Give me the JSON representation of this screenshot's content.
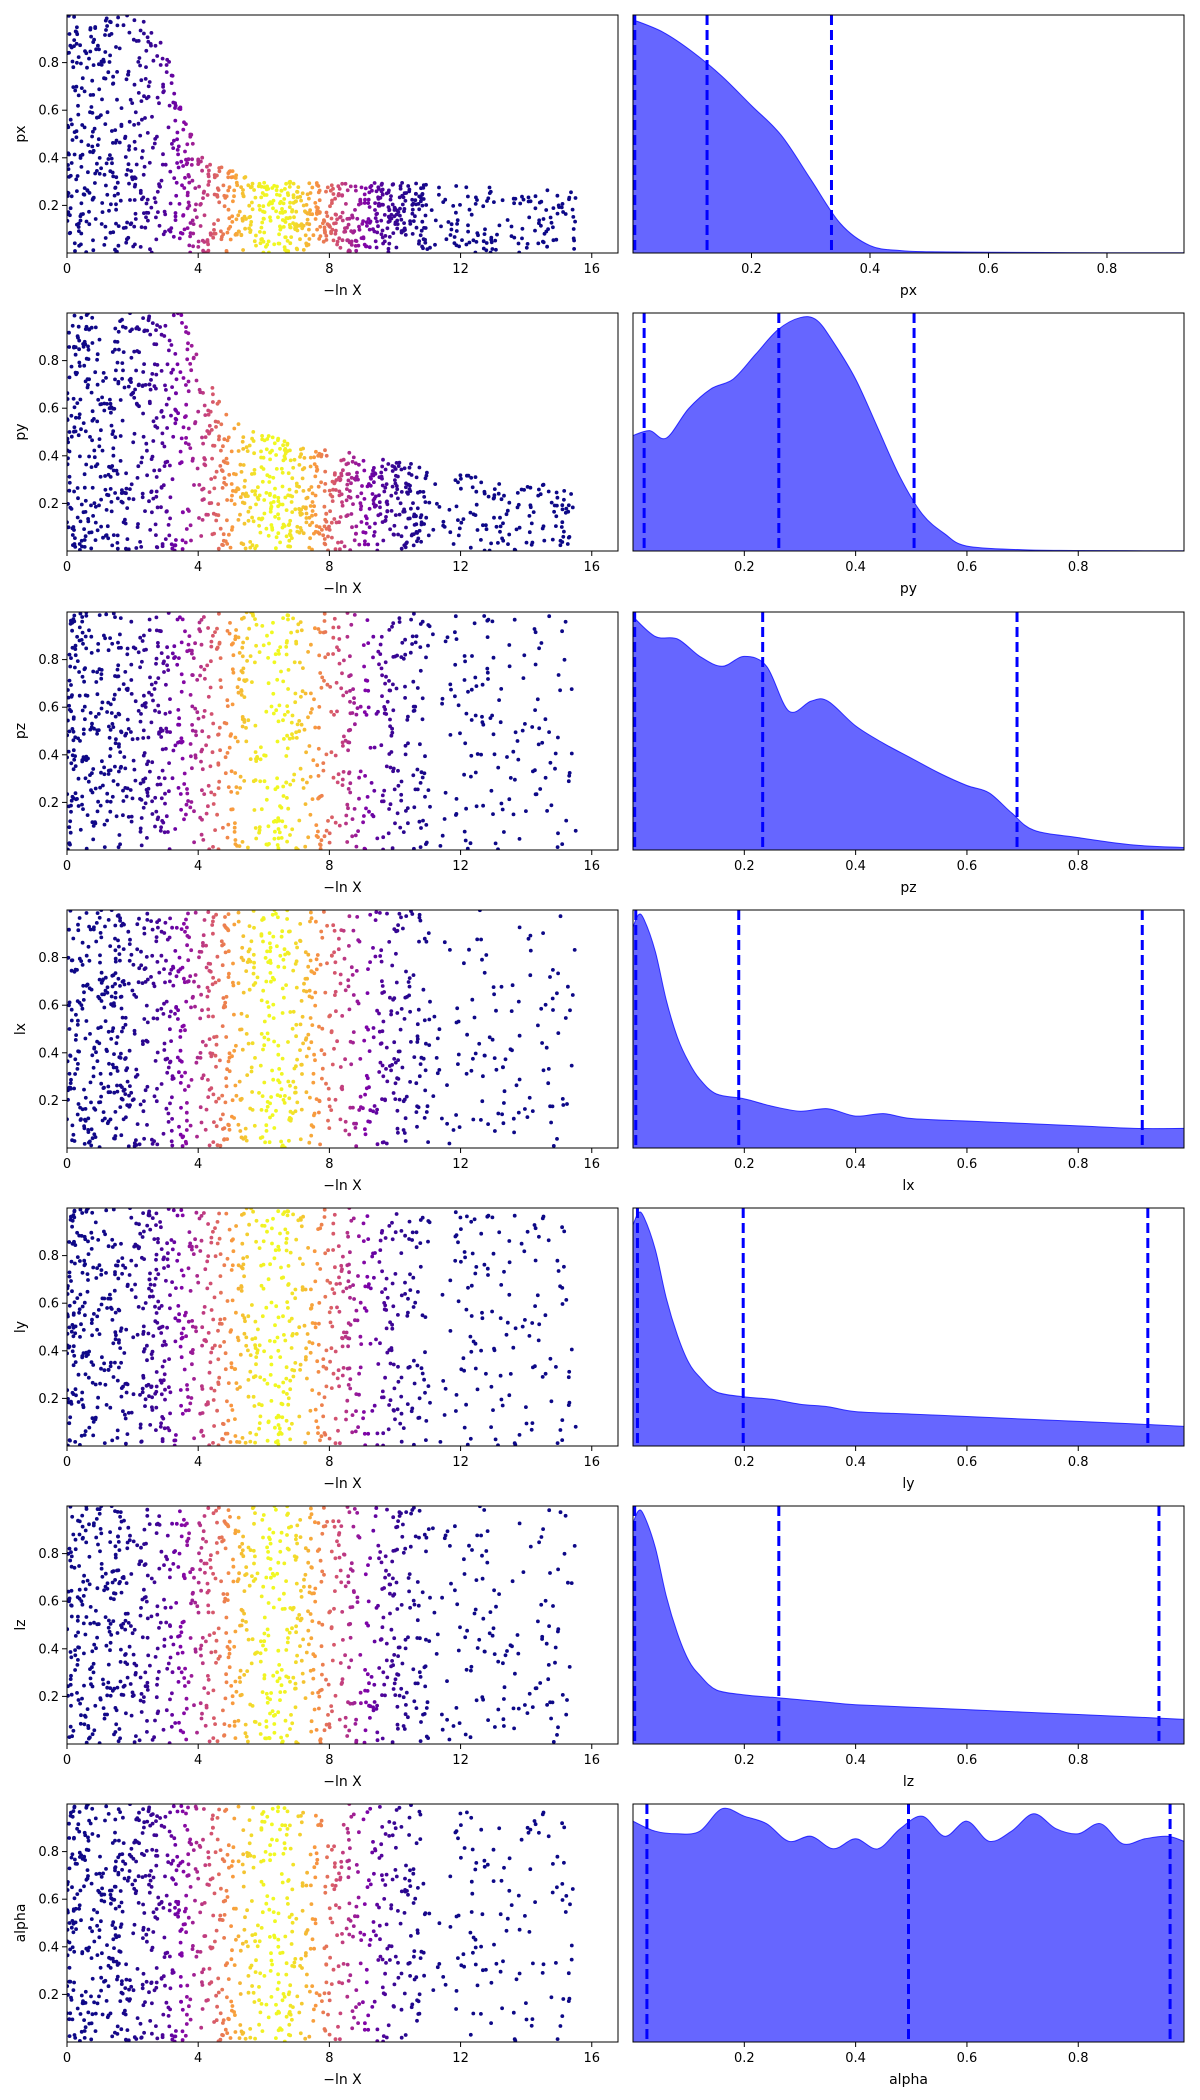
{
  "figure": {
    "background": "#ffffff"
  },
  "chart_data": {
    "type": "scatter+area",
    "description_of_layout": "7 rows x 2 columns: trace scatter (left) and marginal density (right)",
    "trace_xlabel": "−ln X",
    "trace_xlim": [
      0,
      16.8
    ],
    "trace_xticks": [
      0,
      4,
      8,
      12,
      16
    ],
    "trace_color_map": "plasma",
    "trace_color_peak_x": 6.3,
    "density_color": "#0000ff",
    "density_fill_alpha": 0.6,
    "quantile_line_color": "#0000ff",
    "panels": [
      {
        "name": "px",
        "ylabel": "px",
        "xlabel": "px",
        "ylim": [
          0,
          1
        ],
        "yticks": [
          "0.2",
          "0.4",
          "0.6",
          "0.8"
        ],
        "xlim": [
          0,
          0.93
        ],
        "xticks": [
          "0.2",
          "0.4",
          "0.6",
          "0.8"
        ],
        "xtick_values": [
          0.2,
          0.4,
          0.6,
          0.8
        ],
        "quantiles": [
          0.003,
          0.125,
          0.335
        ],
        "density_x": [
          0.0,
          0.05,
          0.1,
          0.15,
          0.2,
          0.25,
          0.3,
          0.35,
          0.4,
          0.45,
          0.5,
          0.6,
          0.7,
          0.8,
          0.93
        ],
        "density_y": [
          0.95,
          0.9,
          0.82,
          0.72,
          0.6,
          0.48,
          0.3,
          0.12,
          0.03,
          0.01,
          0.005,
          0.003,
          0.002,
          0.001,
          0.001
        ],
        "trace_envelope": [
          [
            0,
            1.0
          ],
          [
            2.8,
            1.0
          ],
          [
            3.6,
            0.55
          ],
          [
            4.2,
            0.4
          ],
          [
            6,
            0.3
          ],
          [
            10,
            0.3
          ],
          [
            14,
            0.28
          ],
          [
            16.8,
            0.25
          ]
        ]
      },
      {
        "name": "py",
        "ylabel": "py",
        "xlabel": "py",
        "ylim": [
          0,
          1
        ],
        "yticks": [
          "0.2",
          "0.4",
          "0.6",
          "0.8"
        ],
        "xlim": [
          0,
          0.99
        ],
        "xticks": [
          "0.2",
          "0.4",
          "0.6",
          "0.8"
        ],
        "xtick_values": [
          0.2,
          0.4,
          0.6,
          0.8
        ],
        "quantiles": [
          0.02,
          0.262,
          0.505
        ],
        "density_x": [
          0.0,
          0.03,
          0.06,
          0.1,
          0.14,
          0.18,
          0.22,
          0.26,
          0.3,
          0.33,
          0.36,
          0.4,
          0.44,
          0.48,
          0.52,
          0.56,
          0.6,
          0.7,
          0.8,
          0.99
        ],
        "density_y": [
          0.47,
          0.49,
          0.46,
          0.58,
          0.66,
          0.7,
          0.8,
          0.9,
          0.95,
          0.94,
          0.85,
          0.7,
          0.5,
          0.3,
          0.15,
          0.07,
          0.02,
          0.005,
          0.002,
          0.001
        ],
        "trace_envelope": [
          [
            0,
            1.0
          ],
          [
            3.5,
            1.0
          ],
          [
            4.2,
            0.75
          ],
          [
            5,
            0.55
          ],
          [
            7,
            0.45
          ],
          [
            10,
            0.38
          ],
          [
            12,
            0.33
          ],
          [
            16.8,
            0.25
          ]
        ]
      },
      {
        "name": "pz",
        "ylabel": "pz",
        "xlabel": "pz",
        "ylim": [
          0,
          1
        ],
        "yticks": [
          "0.2",
          "0.4",
          "0.6",
          "0.8"
        ],
        "xlim": [
          0,
          0.99
        ],
        "xticks": [
          "0.2",
          "0.4",
          "0.6",
          "0.8"
        ],
        "xtick_values": [
          0.2,
          0.4,
          0.6,
          0.8
        ],
        "quantiles": [
          0.003,
          0.233,
          0.69
        ],
        "density_x": [
          0.0,
          0.04,
          0.08,
          0.12,
          0.16,
          0.2,
          0.24,
          0.28,
          0.32,
          0.35,
          0.4,
          0.45,
          0.5,
          0.55,
          0.6,
          0.64,
          0.68,
          0.72,
          0.8,
          0.9,
          0.99
        ],
        "density_y": [
          0.94,
          0.86,
          0.85,
          0.78,
          0.74,
          0.78,
          0.74,
          0.56,
          0.6,
          0.6,
          0.5,
          0.43,
          0.37,
          0.31,
          0.26,
          0.23,
          0.15,
          0.08,
          0.05,
          0.02,
          0.01
        ],
        "trace_envelope": [
          [
            0,
            1.0
          ],
          [
            16.8,
            1.0
          ]
        ]
      },
      {
        "name": "lx",
        "ylabel": "lx",
        "xlabel": "lx",
        "ylim": [
          0,
          1
        ],
        "yticks": [
          "0.2",
          "0.4",
          "0.6",
          "0.8"
        ],
        "xlim": [
          0,
          0.99
        ],
        "xticks": [
          "0.2",
          "0.4",
          "0.6",
          "0.8"
        ],
        "xtick_values": [
          0.2,
          0.4,
          0.6,
          0.8
        ],
        "quantiles": [
          0.005,
          0.19,
          0.915
        ],
        "density_x": [
          0.0,
          0.01,
          0.02,
          0.04,
          0.06,
          0.08,
          0.1,
          0.12,
          0.15,
          0.2,
          0.25,
          0.3,
          0.35,
          0.4,
          0.45,
          0.5,
          0.6,
          0.7,
          0.8,
          0.9,
          0.99
        ],
        "density_y": [
          0.9,
          0.95,
          0.93,
          0.8,
          0.6,
          0.45,
          0.35,
          0.28,
          0.22,
          0.2,
          0.17,
          0.15,
          0.16,
          0.13,
          0.14,
          0.12,
          0.11,
          0.1,
          0.09,
          0.08,
          0.08
        ],
        "trace_envelope": [
          [
            0,
            1.0
          ],
          [
            16.8,
            1.0
          ]
        ]
      },
      {
        "name": "ly",
        "ylabel": "ly",
        "xlabel": "ly",
        "ylim": [
          0,
          1
        ],
        "yticks": [
          "0.2",
          "0.4",
          "0.6",
          "0.8"
        ],
        "xlim": [
          0,
          0.99
        ],
        "xticks": [
          "0.2",
          "0.4",
          "0.6",
          "0.8"
        ],
        "xtick_values": [
          0.2,
          0.4,
          0.6,
          0.8
        ],
        "quantiles": [
          0.008,
          0.198,
          0.925
        ],
        "density_x": [
          0.0,
          0.01,
          0.02,
          0.04,
          0.06,
          0.08,
          0.1,
          0.12,
          0.15,
          0.2,
          0.25,
          0.3,
          0.35,
          0.4,
          0.5,
          0.6,
          0.7,
          0.8,
          0.9,
          0.99
        ],
        "density_y": [
          0.9,
          0.95,
          0.93,
          0.8,
          0.6,
          0.45,
          0.34,
          0.28,
          0.22,
          0.2,
          0.19,
          0.17,
          0.16,
          0.14,
          0.13,
          0.12,
          0.11,
          0.1,
          0.09,
          0.08
        ],
        "trace_envelope": [
          [
            0,
            1.0
          ],
          [
            16.8,
            1.0
          ]
        ]
      },
      {
        "name": "lz",
        "ylabel": "lz",
        "xlabel": "lz",
        "ylim": [
          0,
          1
        ],
        "yticks": [
          "0.2",
          "0.4",
          "0.6",
          "0.8"
        ],
        "xlim": [
          0,
          0.99
        ],
        "xticks": [
          "0.2",
          "0.4",
          "0.6",
          "0.8"
        ],
        "xtick_values": [
          0.2,
          0.4,
          0.6,
          0.8
        ],
        "quantiles": [
          0.003,
          0.262,
          0.945
        ],
        "density_x": [
          0.0,
          0.01,
          0.02,
          0.04,
          0.06,
          0.08,
          0.1,
          0.12,
          0.15,
          0.2,
          0.25,
          0.3,
          0.35,
          0.4,
          0.5,
          0.6,
          0.7,
          0.8,
          0.9,
          0.99
        ],
        "density_y": [
          0.9,
          0.95,
          0.93,
          0.8,
          0.6,
          0.45,
          0.34,
          0.28,
          0.22,
          0.2,
          0.19,
          0.18,
          0.17,
          0.16,
          0.15,
          0.14,
          0.13,
          0.12,
          0.11,
          0.1
        ],
        "trace_envelope": [
          [
            0,
            1.0
          ],
          [
            16.8,
            1.0
          ]
        ]
      },
      {
        "name": "alpha",
        "ylabel": "alpha",
        "xlabel": "alpha",
        "ylim": [
          0,
          1
        ],
        "yticks": [
          "0.2",
          "0.4",
          "0.6",
          "0.8"
        ],
        "xlim": [
          0,
          0.99
        ],
        "xticks": [
          "0.2",
          "0.4",
          "0.6",
          "0.8"
        ],
        "xtick_values": [
          0.2,
          0.4,
          0.6,
          0.8
        ],
        "quantiles": [
          0.025,
          0.495,
          0.965
        ],
        "density_x": [
          0.0,
          0.04,
          0.08,
          0.12,
          0.16,
          0.2,
          0.24,
          0.28,
          0.32,
          0.36,
          0.4,
          0.44,
          0.48,
          0.52,
          0.56,
          0.6,
          0.64,
          0.68,
          0.72,
          0.76,
          0.8,
          0.84,
          0.88,
          0.92,
          0.96,
          0.99
        ],
        "density_y": [
          0.88,
          0.84,
          0.83,
          0.84,
          0.93,
          0.9,
          0.87,
          0.8,
          0.82,
          0.77,
          0.81,
          0.77,
          0.85,
          0.9,
          0.82,
          0.88,
          0.8,
          0.84,
          0.91,
          0.85,
          0.83,
          0.87,
          0.79,
          0.81,
          0.82,
          0.8
        ],
        "trace_envelope": [
          [
            0,
            1.0
          ],
          [
            16.8,
            1.0
          ]
        ]
      }
    ]
  }
}
